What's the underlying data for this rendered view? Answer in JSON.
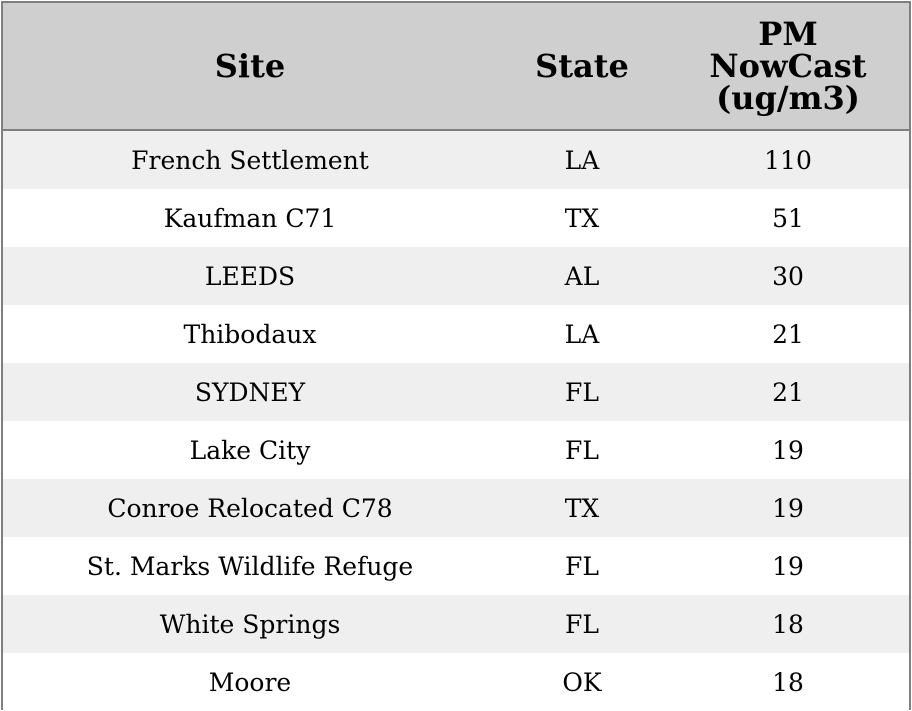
{
  "chart_data": {
    "type": "table",
    "columns": [
      "Site",
      "State",
      "PM NowCast (ug/m3)"
    ],
    "header_lines": [
      [
        "Site"
      ],
      [
        "State"
      ],
      [
        "PM",
        "NowCast",
        "(ug/m3)"
      ]
    ],
    "rows": [
      [
        "French Settlement",
        "LA",
        "110"
      ],
      [
        "Kaufman C71",
        "TX",
        "51"
      ],
      [
        "LEEDS",
        "AL",
        "30"
      ],
      [
        "Thibodaux",
        "LA",
        "21"
      ],
      [
        "SYDNEY",
        "FL",
        "21"
      ],
      [
        "Lake City",
        "FL",
        "19"
      ],
      [
        "Conroe Relocated C78",
        "TX",
        "19"
      ],
      [
        "St. Marks Wildlife Refuge",
        "FL",
        "19"
      ],
      [
        "White Springs",
        "FL",
        "18"
      ],
      [
        "Moore",
        "OK",
        "18"
      ]
    ]
  },
  "colors": {
    "header_bg": "#cfcfcf",
    "row_odd": "#efefef",
    "row_even": "#ffffff",
    "border": "#7f7f7f"
  }
}
